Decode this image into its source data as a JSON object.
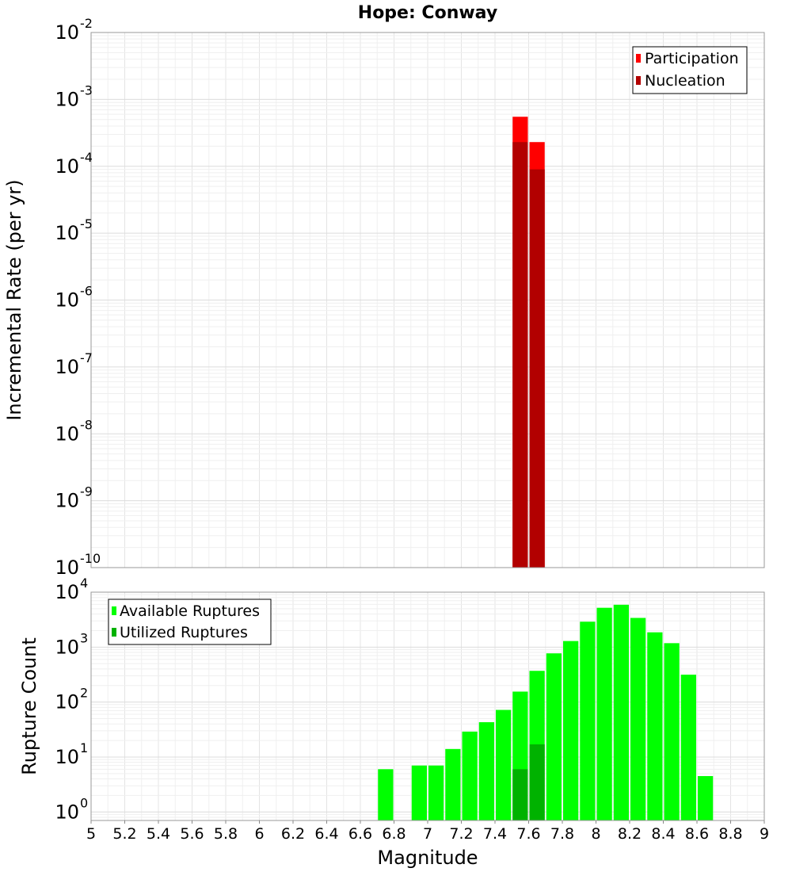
{
  "chart_data": [
    {
      "type": "bar",
      "title": "Hope: Conway",
      "xlabel": "",
      "ylabel": "Incremental Rate (per yr)",
      "xlim": [
        5,
        9
      ],
      "ylim": [
        1e-10,
        0.01
      ],
      "yscale": "log",
      "grid": true,
      "legend_position": "top-right",
      "bin_width": 0.1,
      "series": [
        {
          "name": "Participation",
          "color": "#ff0000",
          "x": [
            7.55,
            7.65
          ],
          "values": [
            0.00055,
            0.00023
          ]
        },
        {
          "name": "Nucleation",
          "color": "#b20000",
          "x": [
            7.55,
            7.65
          ],
          "values": [
            0.00023,
            9e-05
          ]
        }
      ]
    },
    {
      "type": "bar",
      "title": "",
      "xlabel": "Magnitude",
      "ylabel": "Rupture Count",
      "xlim": [
        5,
        9
      ],
      "ylim": [
        0.7,
        10000
      ],
      "yscale": "log",
      "grid": true,
      "legend_position": "top-left",
      "bin_width": 0.1,
      "series": [
        {
          "name": "Available Ruptures",
          "color": "#00ff00",
          "x": [
            6.75,
            6.95,
            7.05,
            7.15,
            7.25,
            7.35,
            7.45,
            7.55,
            7.65,
            7.75,
            7.85,
            7.95,
            8.05,
            8.15,
            8.25,
            8.35,
            8.45,
            8.55,
            8.65
          ],
          "values": [
            6,
            7,
            7,
            14,
            29,
            43,
            72,
            155,
            370,
            770,
            1290,
            2900,
            5200,
            5900,
            3400,
            1860,
            1180,
            315,
            4.5
          ]
        },
        {
          "name": "Utilized Ruptures",
          "color": "#00b200",
          "x": [
            7.55,
            7.65
          ],
          "values": [
            6,
            17
          ]
        }
      ]
    }
  ],
  "x_ticks": [
    "5",
    "5.2",
    "5.4",
    "5.6",
    "5.8",
    "6",
    "6.2",
    "6.4",
    "6.6",
    "6.8",
    "7",
    "7.2",
    "7.4",
    "7.6",
    "7.8",
    "8",
    "8.2",
    "8.4",
    "8.6",
    "8.8",
    "9"
  ],
  "top_y_ticks": [
    {
      "base": "10",
      "exp": "-2"
    },
    {
      "base": "10",
      "exp": "-3"
    },
    {
      "base": "10",
      "exp": "-4"
    },
    {
      "base": "10",
      "exp": "-5"
    },
    {
      "base": "10",
      "exp": "-6"
    },
    {
      "base": "10",
      "exp": "-7"
    },
    {
      "base": "10",
      "exp": "-8"
    },
    {
      "base": "10",
      "exp": "-9"
    },
    {
      "base": "10",
      "exp": "-10"
    }
  ],
  "bottom_y_ticks": [
    {
      "base": "10",
      "exp": "4"
    },
    {
      "base": "10",
      "exp": "3"
    },
    {
      "base": "10",
      "exp": "2"
    },
    {
      "base": "10",
      "exp": "1"
    },
    {
      "base": "10",
      "exp": "0"
    }
  ]
}
